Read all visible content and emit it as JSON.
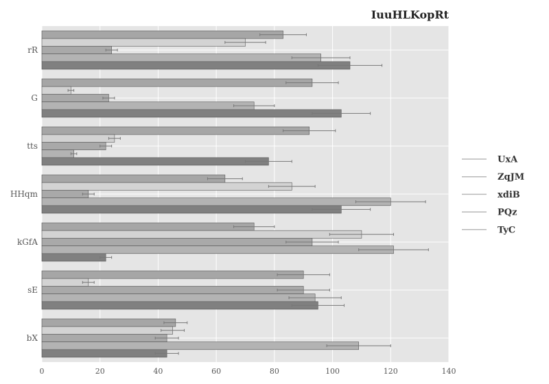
{
  "chart_data": {
    "type": "bar",
    "orientation": "horizontal",
    "title": "IuuHLKopRt",
    "xlabel": "",
    "ylabel": "",
    "xlim": [
      0,
      140
    ],
    "x_ticks": [
      0,
      20,
      40,
      60,
      80,
      100,
      120,
      140
    ],
    "grid": true,
    "legend_position": "right",
    "error_bars": true,
    "categories": [
      "rR",
      "G",
      "tts",
      "HHqm",
      "kGfA",
      "sE",
      "bX"
    ],
    "series": [
      {
        "name": "UxA",
        "color": "#a6a6a6",
        "values": [
          83,
          93,
          92,
          63,
          73,
          90,
          46
        ],
        "errors": [
          8,
          9,
          9,
          6,
          7,
          9,
          4
        ]
      },
      {
        "name": "ZqJM",
        "color": "#d3d3d3",
        "values": [
          70,
          10,
          25,
          86,
          110,
          16,
          45
        ],
        "errors": [
          7,
          1,
          2,
          8,
          11,
          2,
          4
        ]
      },
      {
        "name": "xdiB",
        "color": "#a9a9a9",
        "values": [
          24,
          23,
          22,
          16,
          93,
          90,
          43
        ],
        "errors": [
          2,
          2,
          2,
          2,
          9,
          9,
          4
        ]
      },
      {
        "name": "PQz",
        "color": "#b3b3b3",
        "values": [
          96,
          73,
          11,
          120,
          121,
          94,
          109
        ],
        "errors": [
          10,
          7,
          1,
          12,
          12,
          9,
          11
        ]
      },
      {
        "name": "TyC",
        "color": "#808080",
        "values": [
          106,
          103,
          78,
          103,
          22,
          95,
          43
        ],
        "errors": [
          11,
          10,
          8,
          10,
          2,
          9,
          4
        ]
      }
    ]
  }
}
